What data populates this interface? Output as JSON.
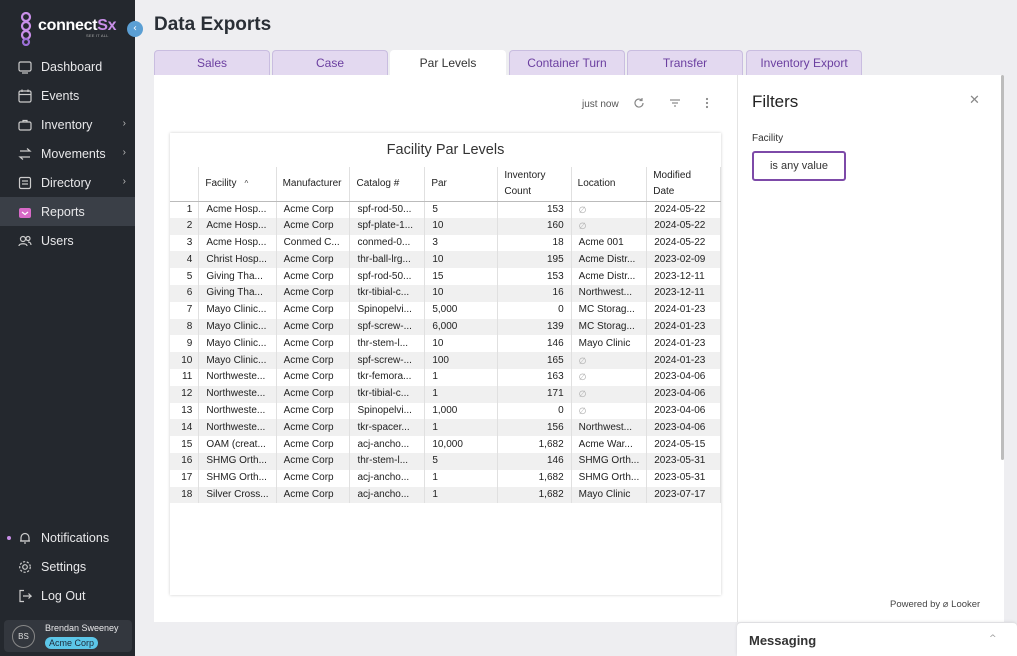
{
  "brand": {
    "name_main": "connect",
    "name_accent": "Sx",
    "tagline": "SEE IT ALL"
  },
  "page_title": "Data Exports",
  "sidebar": {
    "items": [
      {
        "label": "Dashboard",
        "icon": "dashboard-icon"
      },
      {
        "label": "Events",
        "icon": "calendar-icon"
      },
      {
        "label": "Inventory",
        "icon": "briefcase-icon"
      },
      {
        "label": "Movements",
        "icon": "arrows-icon"
      },
      {
        "label": "Directory",
        "icon": "folder-icon"
      },
      {
        "label": "Reports",
        "icon": "reports-icon"
      },
      {
        "label": "Users",
        "icon": "users-icon"
      }
    ],
    "bottom": [
      {
        "label": "Notifications",
        "icon": "bell-icon"
      },
      {
        "label": "Settings",
        "icon": "gear-icon"
      },
      {
        "label": "Log Out",
        "icon": "logout-icon"
      }
    ],
    "user": {
      "initials": "BS",
      "name": "Brendan Sweeney",
      "org": "Acme Corp"
    }
  },
  "tabs": [
    "Sales",
    "Case",
    "Par Levels",
    "Container Turn",
    "Transfer",
    "Inventory Export"
  ],
  "toolbar": {
    "updated": "just now"
  },
  "report": {
    "title": "Facility Par Levels",
    "columns": [
      "Facility",
      "Manufacturer",
      "Catalog #",
      "Par",
      "Inventory Count",
      "Location",
      "Modified Date"
    ],
    "rows": [
      [
        "1",
        "Acme Hosp...",
        "Acme Corp",
        "spf-rod-50...",
        "5",
        "153",
        "∅",
        "2024-05-22"
      ],
      [
        "2",
        "Acme Hosp...",
        "Acme Corp",
        "spf-plate-1...",
        "10",
        "160",
        "∅",
        "2024-05-22"
      ],
      [
        "3",
        "Acme Hosp...",
        "Conmed C...",
        "conmed-0...",
        "3",
        "18",
        "Acme 001",
        "2024-05-22"
      ],
      [
        "4",
        "Christ Hosp...",
        "Acme Corp",
        "thr-ball-lrg...",
        "10",
        "195",
        "Acme Distr...",
        "2023-02-09"
      ],
      [
        "5",
        "Giving Tha...",
        "Acme Corp",
        "spf-rod-50...",
        "15",
        "153",
        "Acme Distr...",
        "2023-12-11"
      ],
      [
        "6",
        "Giving Tha...",
        "Acme Corp",
        "tkr-tibial-c...",
        "10",
        "16",
        "Northwest...",
        "2023-12-11"
      ],
      [
        "7",
        "Mayo Clinic...",
        "Acme Corp",
        "Spinopelvi...",
        "5,000",
        "0",
        "MC Storag...",
        "2024-01-23"
      ],
      [
        "8",
        "Mayo Clinic...",
        "Acme Corp",
        "spf-screw-...",
        "6,000",
        "139",
        "MC Storag...",
        "2024-01-23"
      ],
      [
        "9",
        "Mayo Clinic...",
        "Acme Corp",
        "thr-stem-l...",
        "10",
        "146",
        "Mayo Clinic",
        "2024-01-23"
      ],
      [
        "10",
        "Mayo Clinic...",
        "Acme Corp",
        "spf-screw-...",
        "100",
        "165",
        "∅",
        "2024-01-23"
      ],
      [
        "11",
        "Northweste...",
        "Acme Corp",
        "tkr-femora...",
        "1",
        "163",
        "∅",
        "2023-04-06"
      ],
      [
        "12",
        "Northweste...",
        "Acme Corp",
        "tkr-tibial-c...",
        "1",
        "171",
        "∅",
        "2023-04-06"
      ],
      [
        "13",
        "Northweste...",
        "Acme Corp",
        "Spinopelvi...",
        "1,000",
        "0",
        "∅",
        "2023-04-06"
      ],
      [
        "14",
        "Northweste...",
        "Acme Corp",
        "tkr-spacer...",
        "1",
        "156",
        "Northwest...",
        "2023-04-06"
      ],
      [
        "15",
        "OAM (creat...",
        "Acme Corp",
        "acj-ancho...",
        "10,000",
        "1,682",
        "Acme War...",
        "2024-05-15"
      ],
      [
        "16",
        "SHMG Orth...",
        "Acme Corp",
        "thr-stem-l...",
        "5",
        "146",
        "SHMG Orth...",
        "2023-05-31"
      ],
      [
        "17",
        "SHMG Orth...",
        "Acme Corp",
        "acj-ancho...",
        "1",
        "1,682",
        "SHMG Orth...",
        "2023-05-31"
      ],
      [
        "18",
        "Silver Cross...",
        "Acme Corp",
        "acj-ancho...",
        "1",
        "1,682",
        "Mayo Clinic",
        "2023-07-17"
      ]
    ]
  },
  "filters": {
    "title": "Filters",
    "facility_label": "Facility",
    "facility_value": "is any value"
  },
  "powered_by": "Powered by ⌀ Looker",
  "messaging": {
    "title": "Messaging"
  },
  "colors": {
    "sidebar": "#24282e",
    "accent": "#7d4aa8",
    "tab": "#e3d9f0",
    "org_badge": "#5cc6e8"
  }
}
